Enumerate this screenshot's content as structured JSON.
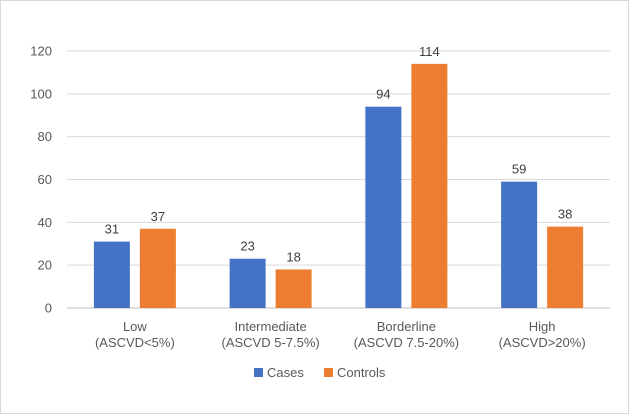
{
  "chart_data": {
    "type": "bar",
    "categories": [
      [
        "Low",
        "(ASCVD<5%)"
      ],
      [
        "Intermediate",
        "(ASCVD 5-7.5%)"
      ],
      [
        "Borderline",
        "(ASCVD 7.5-20%)"
      ],
      [
        "High",
        "(ASCVD>20%)"
      ]
    ],
    "series": [
      {
        "name": "Cases",
        "values": [
          31,
          23,
          94,
          59
        ],
        "color": "#4472c4"
      },
      {
        "name": "Controls",
        "values": [
          37,
          18,
          114,
          38
        ],
        "color": "#ed7d31"
      }
    ],
    "yticks": [
      "0",
      "20",
      "40",
      "60",
      "80",
      "100",
      "120"
    ],
    "ylim": [
      0,
      120
    ],
    "grid": true,
    "legend_position": "bottom",
    "data_labels": true
  }
}
